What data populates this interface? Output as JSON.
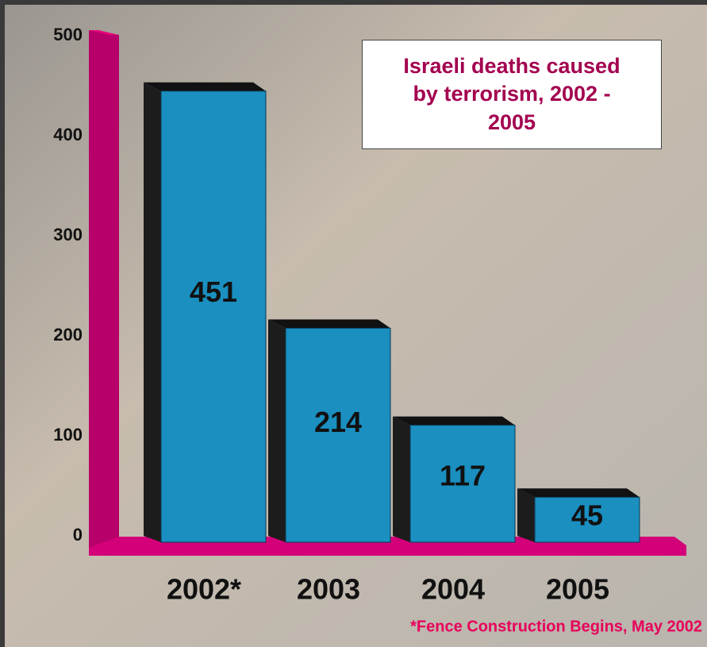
{
  "chart_data": {
    "type": "bar3d",
    "title": "Israeli deaths caused by terrorism, 2002 - 2005",
    "categories": [
      "2002*",
      "2003",
      "2004",
      "2005"
    ],
    "values": [
      451,
      214,
      117,
      45
    ],
    "color": "#1a8fc0",
    "ylim": [
      0,
      500
    ],
    "yticks": [
      0,
      100,
      200,
      300,
      400,
      500
    ],
    "footnote": "*Fence Construction Begins, May 2002"
  }
}
